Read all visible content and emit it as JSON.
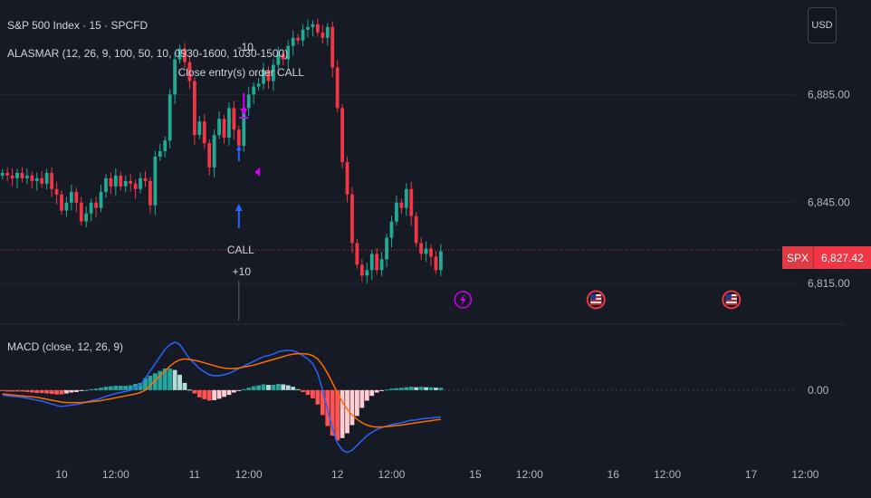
{
  "header": {
    "symbol_line": "S&P 500 Index · 15 · SPCFD",
    "indicator_line": "ALASMAR (12, 26, 9, 100, 50, 10, 0930-1600, 1030-1500)",
    "macd_line": "MACD (close, 12, 26, 9)"
  },
  "toolbar": {
    "currency": "USD"
  },
  "price_badge": {
    "symbol": "SPX",
    "value": "6,827.42"
  },
  "colors": {
    "up": "#22ab94",
    "down": "#f23645",
    "macd": "#2962ff",
    "signal": "#ff6d00",
    "marker": "#d500f9",
    "entry": "#2962ff"
  },
  "chart_data": [
    {
      "type": "candlestick",
      "title": "S&P 500 Index · 15 · SPCFD",
      "y_ticks": [
        {
          "value": 6885,
          "label": "6,885.00"
        },
        {
          "value": 6845,
          "label": "6,845.00"
        },
        {
          "value": 6815,
          "label": "6,815.00"
        }
      ],
      "ylim": [
        6801,
        6920
      ],
      "last_price": 6827.42,
      "x_ticks": [
        {
          "bar": 12,
          "label": "10"
        },
        {
          "bar": 23,
          "label": "12:00"
        },
        {
          "bar": 39,
          "label": "11"
        },
        {
          "bar": 50,
          "label": "12:00"
        },
        {
          "bar": 68,
          "label": "12"
        },
        {
          "bar": 79,
          "label": "12:00"
        },
        {
          "bar": 96,
          "label": "15"
        },
        {
          "bar": 107,
          "label": "12:00"
        },
        {
          "bar": 124,
          "label": "16"
        },
        {
          "bar": 135,
          "label": "12:00"
        },
        {
          "bar": 152,
          "label": "17"
        },
        {
          "bar": 163,
          "label": "12:00"
        }
      ],
      "close": [
        6856,
        6855,
        6854,
        6856,
        6854,
        6855,
        6853,
        6854,
        6852,
        6856,
        6850,
        6848,
        6842,
        6845,
        6849,
        6845,
        6838,
        6841,
        6845,
        6843,
        6849,
        6854,
        6851,
        6855,
        6851,
        6853,
        6852,
        6850,
        6854,
        6853,
        6844,
        6862,
        6864,
        6868,
        6885,
        6898,
        6902,
        6897,
        6890,
        6870,
        6875,
        6867,
        6858,
        6870,
        6876,
        6869,
        6880,
        6872,
        6866,
        6880,
        6885,
        6888,
        6889,
        6894,
        6890,
        6896,
        6900,
        6898,
        6903,
        6906,
        6905,
        6909,
        6910,
        6911,
        6908,
        6906,
        6910,
        6895,
        6880,
        6860,
        6848,
        6830,
        6822,
        6818,
        6820,
        6826,
        6820,
        6824,
        6832,
        6838,
        6845,
        6843,
        6850,
        6840,
        6830,
        6826,
        6828,
        6825,
        6820,
        6827
      ],
      "annotations": [
        {
          "text": "-10",
          "kind": "label"
        },
        {
          "text": "Close entry(s) order CALL",
          "kind": "label"
        },
        {
          "text": "CALL",
          "kind": "label"
        },
        {
          "text": "+10",
          "kind": "label"
        }
      ]
    },
    {
      "type": "line+histogram",
      "title": "MACD (close, 12, 26, 9)",
      "y_ticks": [
        {
          "value": 0,
          "label": "0.00"
        }
      ],
      "ylim": [
        -14,
        13
      ],
      "series": [
        {
          "name": "",
          "values": [
            -1,
            -1.2,
            -1.3,
            -1.4,
            -1.5,
            -1.7,
            -1.9,
            -2.1,
            -2.3,
            -2.6,
            -2.9,
            -3.2,
            -3.4,
            -3.3,
            -3.1,
            -3,
            -2.8,
            -2.5,
            -2.2,
            -2,
            -1.7,
            -1.3,
            -1,
            -0.7,
            -0.5,
            -0.3,
            0,
            0.5,
            1,
            2.5,
            4,
            5.5,
            7,
            8.5,
            9.5,
            10,
            9.5,
            8,
            6.5,
            5.5,
            4.5,
            3.8,
            3.2,
            3,
            3,
            3.2,
            3.5,
            4,
            4.5,
            5,
            5.5,
            6,
            6.5,
            7,
            7.2,
            7.5,
            8,
            8.2,
            8.3,
            8.2,
            7.8,
            7.2,
            6.5,
            5.5,
            3.5,
            0,
            -4,
            -8,
            -11,
            -12.5,
            -13,
            -12.5,
            -11.5,
            -10.5,
            -9.5,
            -8.8,
            -8.2,
            -7.8,
            -7.5,
            -7.2,
            -7,
            -6.8,
            -6.5,
            -6.3,
            -6.2,
            -6,
            -5.9,
            -5.8,
            -5.7,
            -5.6
          ]
        },
        {
          "name": "",
          "values": [
            -0.8,
            -0.9,
            -1,
            -1.1,
            -1.2,
            -1.3,
            -1.4,
            -1.5,
            -1.7,
            -1.9,
            -2.1,
            -2.3,
            -2.5,
            -2.6,
            -2.6,
            -2.6,
            -2.6,
            -2.5,
            -2.4,
            -2.3,
            -2.2,
            -2,
            -1.8,
            -1.6,
            -1.4,
            -1.2,
            -1,
            -0.8,
            -0.5,
            0,
            1,
            2,
            3,
            4,
            5,
            5.8,
            6.3,
            6.5,
            6.4,
            6.2,
            6,
            5.7,
            5.4,
            5.1,
            4.8,
            4.6,
            4.5,
            4.5,
            4.6,
            4.8,
            5,
            5.2,
            5.5,
            5.8,
            6.1,
            6.4,
            6.7,
            7,
            7.3,
            7.5,
            7.6,
            7.6,
            7.5,
            7.2,
            6.5,
            5.2,
            3.5,
            1.5,
            -0.5,
            -2.5,
            -4,
            -5.2,
            -6.1,
            -6.8,
            -7.3,
            -7.6,
            -7.7,
            -7.7,
            -7.6,
            -7.5,
            -7.4,
            -7.3,
            -7.1,
            -7,
            -6.8,
            -6.7,
            -6.5,
            -6.4,
            -6.2,
            -6.1
          ]
        }
      ],
      "histogram": [
        -0.2,
        -0.3,
        -0.3,
        -0.3,
        -0.3,
        -0.4,
        -0.5,
        -0.6,
        -0.6,
        -0.7,
        -0.8,
        -0.9,
        -0.9,
        -0.7,
        -0.5,
        -0.4,
        -0.2,
        0,
        0.2,
        0.3,
        0.5,
        0.7,
        0.8,
        0.9,
        0.9,
        0.9,
        1,
        1.3,
        1.5,
        2.5,
        3,
        3.5,
        4,
        4.5,
        4.5,
        4.2,
        3.2,
        1.5,
        0.1,
        -0.7,
        -1.5,
        -1.9,
        -2.2,
        -2.1,
        -1.8,
        -1.4,
        -1,
        -0.5,
        -0.1,
        0.2,
        0.5,
        0.8,
        1,
        1.2,
        1.1,
        1.1,
        1.3,
        1.2,
        1,
        0.7,
        0.2,
        -0.4,
        -1,
        -1.7,
        -3,
        -5.2,
        -7.5,
        -9.5,
        -10.5,
        -10,
        -9,
        -7.3,
        -5.4,
        -3.7,
        -2.2,
        -1.2,
        -0.5,
        -0.1,
        0.1,
        0.3,
        0.4,
        0.5,
        0.6,
        0.7,
        0.6,
        0.7,
        0.6,
        0.6,
        0.5,
        0.5
      ]
    }
  ]
}
